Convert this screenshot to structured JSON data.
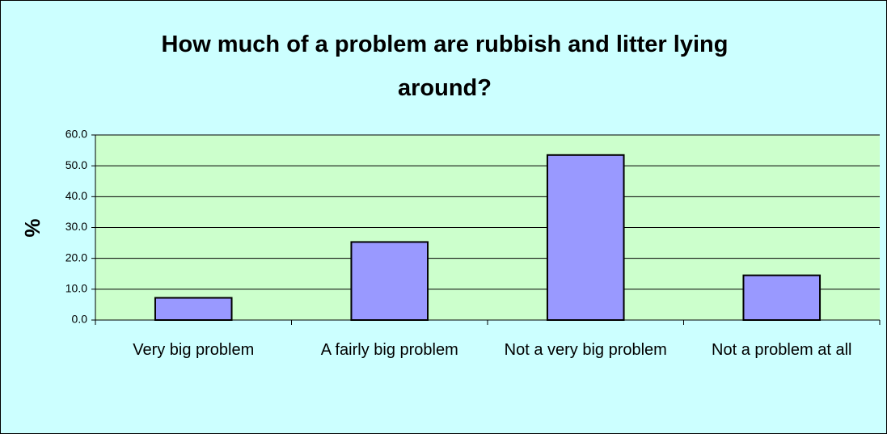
{
  "chart_data": {
    "type": "bar",
    "title": "How much of a problem are rubbish and litter lying around?",
    "ylabel": "%",
    "categories": [
      "Very big problem",
      "A fairly big problem",
      "Not a very big problem",
      "Not a problem at all"
    ],
    "values": [
      7.2,
      25.3,
      53.5,
      14.5
    ],
    "color": "#9999ff",
    "ylim": [
      0,
      60
    ],
    "yticks": [
      {
        "value": 0,
        "label": "0.0"
      },
      {
        "value": 10,
        "label": "10.0"
      },
      {
        "value": 20,
        "label": "20.0"
      },
      {
        "value": 30,
        "label": "30.0"
      },
      {
        "value": 40,
        "label": "40.0"
      },
      {
        "value": 50,
        "label": "50.0"
      },
      {
        "value": 60,
        "label": "60.0"
      }
    ],
    "grid": true
  }
}
